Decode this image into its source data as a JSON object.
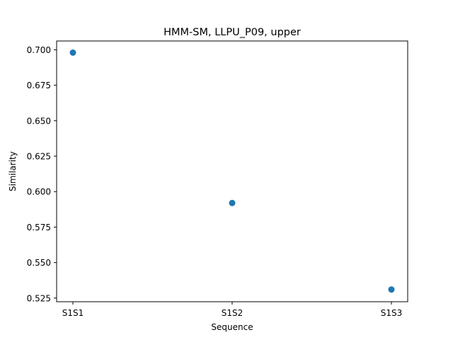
{
  "chart_data": {
    "type": "scatter",
    "title": "HMM-SM, LLPU_P09, upper",
    "xlabel": "Sequence",
    "ylabel": "Similarity",
    "categories": [
      "S1S1",
      "S1S2",
      "S1S3"
    ],
    "values": [
      0.698,
      0.592,
      0.531
    ],
    "ylim": [
      0.5224,
      0.7062
    ],
    "yticks": [
      0.525,
      0.55,
      0.575,
      0.6,
      0.625,
      0.65,
      0.675,
      0.7
    ],
    "ytick_labels": [
      "0.525",
      "0.550",
      "0.575",
      "0.600",
      "0.625",
      "0.650",
      "0.675",
      "0.700"
    ],
    "grid": false,
    "marker_color": "#1f77b4"
  }
}
